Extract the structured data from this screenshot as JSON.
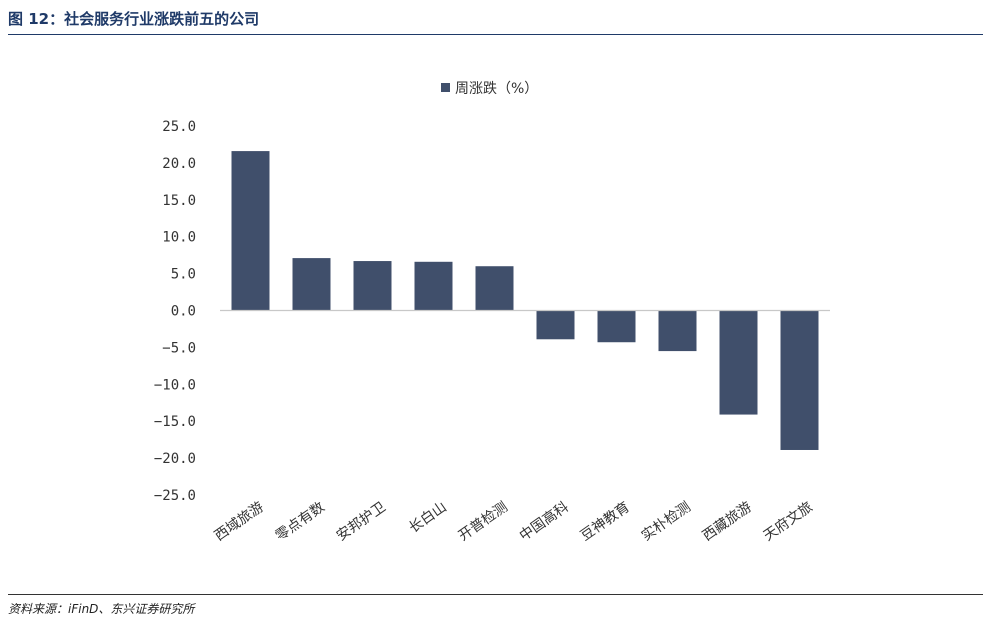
{
  "figure": {
    "title": "图 12：社会服务行业涨跌前五的公司",
    "source": "资料来源：iFinD、东兴证券研究所"
  },
  "colors": {
    "bar": "#404f6b",
    "title": "#1f3a68",
    "axis": "#c8c8c8"
  },
  "chart_data": {
    "type": "bar",
    "title": "",
    "xlabel": "",
    "ylabel": "",
    "legend_position": "top-center",
    "grid": false,
    "ylim": [
      -25,
      25
    ],
    "y_ticks": [
      "25.0",
      "20.0",
      "15.0",
      "10.0",
      "5.0",
      "0.0",
      "−5.0",
      "−10.0",
      "−15.0",
      "−20.0",
      "−25.0"
    ],
    "y_tick_values": [
      25,
      20,
      15,
      10,
      5,
      0,
      -5,
      -10,
      -15,
      -20,
      -25
    ],
    "categories": [
      "西域旅游",
      "零点有数",
      "安邦护卫",
      "长白山",
      "开普检测",
      "中国高科",
      "豆神教育",
      "实朴检测",
      "西藏旅游",
      "天府文旅"
    ],
    "series": [
      {
        "name": "周涨跌（%）",
        "values": [
          21.6,
          7.1,
          6.7,
          6.6,
          6.0,
          -3.9,
          -4.3,
          -5.5,
          -14.1,
          -18.9
        ]
      }
    ]
  }
}
